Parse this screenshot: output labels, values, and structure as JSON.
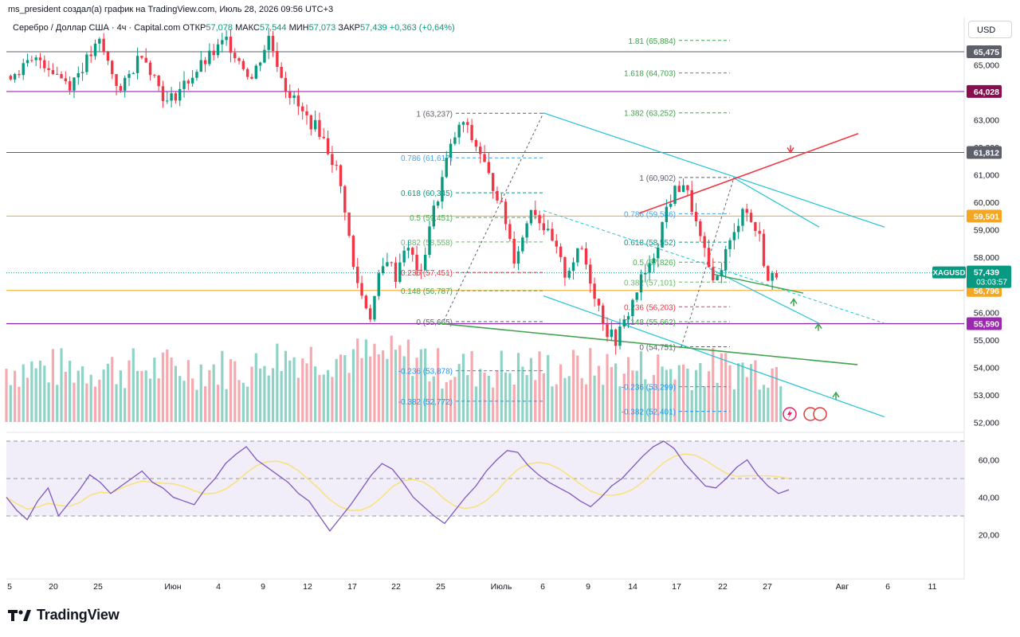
{
  "header": {
    "caption": "ms_president создал(а) график на TradingView.com, Июль 28, 2026 09:56 UTC+3"
  },
  "symbol": {
    "name": "Серебро / Доллар США · 4ч · Capital.com",
    "open_label": "ОТКР",
    "open": "57,078",
    "high_label": "МАКС",
    "high": "57,544",
    "low_label": "МИН",
    "low": "57,073",
    "close_label": "ЗАКР",
    "close": "57,439",
    "change": "+0,363 (+0,64%)"
  },
  "currency": "USD",
  "brand": {
    "name": "TradingView"
  },
  "colors": {
    "up": "#089981",
    "down": "#f23645",
    "rsi": "#7e57c2",
    "rsi_ma": "#f7e27a",
    "trend_cyan": "#22c3d6",
    "trend_red": "#f23645",
    "trend_green": "#3fa34d",
    "orange": "#f5a623",
    "purple": "#8e24aa"
  },
  "chart_data": [
    {
      "type": "candlestick",
      "title": "Серебро / Доллар США · 4ч · Capital.com",
      "ylim": [
        51500,
        66200
      ],
      "y_ticks": [
        "65,000",
        "63,000",
        "62,000",
        "61,000",
        "60,000",
        "59,000",
        "58,000",
        "56,000",
        "55,000",
        "54,000",
        "53,000",
        "52,000"
      ],
      "x_ticks": [
        "5",
        "20",
        "25",
        "Июн",
        "4",
        "9",
        "12",
        "17",
        "22",
        "25",
        "Июль",
        "6",
        "9",
        "14",
        "17",
        "22",
        "27",
        "Авг",
        "6",
        "11"
      ],
      "price_labels": [
        {
          "value": "65,475",
          "color": "#5d606b"
        },
        {
          "value": "64,028",
          "color": "#880e4f"
        },
        {
          "value": "61,812",
          "color": "#5d606b"
        },
        {
          "value": "59,501",
          "color": "#f5a623"
        },
        {
          "value": "56,796",
          "color": "#f5a623"
        },
        {
          "value": "55,590",
          "color": "#9c27b0"
        }
      ],
      "last_price": {
        "symbol": "XAGUSD",
        "price": "57,439",
        "countdown": "03:03:57"
      },
      "horizontal_levels": [
        65475,
        64028,
        61812,
        59501,
        56796,
        55590
      ],
      "fib_1": [
        {
          "ratio": "1",
          "value": "63,237"
        },
        {
          "ratio": "0.786",
          "value": "61,617"
        },
        {
          "ratio": "0.618",
          "value": "60,345"
        },
        {
          "ratio": "0.5",
          "value": "59,451"
        },
        {
          "ratio": "0.382",
          "value": "58,558"
        },
        {
          "ratio": "0.236",
          "value": "57,451"
        },
        {
          "ratio": "0.148",
          "value": "56,787"
        },
        {
          "ratio": "0",
          "value": "55,665"
        },
        {
          "ratio": "-0.236",
          "value": "53,878"
        },
        {
          "ratio": "-0.382",
          "value": "52,772"
        }
      ],
      "fib_2": [
        {
          "ratio": "1.81",
          "value": "65,884"
        },
        {
          "ratio": "1.618",
          "value": "64,703"
        },
        {
          "ratio": "1.382",
          "value": "63,252"
        },
        {
          "ratio": "1",
          "value": "60,902"
        },
        {
          "ratio": "0.786",
          "value": "59,586"
        },
        {
          "ratio": "0.618",
          "value": "58,552"
        },
        {
          "ratio": "0.5",
          "value": "57,826"
        },
        {
          "ratio": "0.382",
          "value": "57,101"
        },
        {
          "ratio": "0.236",
          "value": "56,203"
        },
        {
          "ratio": "0.148",
          "value": "55,662"
        },
        {
          "ratio": "0",
          "value": "54,751"
        },
        {
          "ratio": "-0.236",
          "value": "53,299"
        },
        {
          "ratio": "-0.382",
          "value": "52,401"
        }
      ],
      "price_path": [
        [
          0,
          64.6
        ],
        [
          8,
          65.2
        ],
        [
          15,
          64.3
        ],
        [
          22,
          65.8
        ],
        [
          27,
          64.0
        ],
        [
          32,
          65.5
        ],
        [
          38,
          63.6
        ],
        [
          45,
          64.8
        ],
        [
          52,
          65.9
        ],
        [
          58,
          64.5
        ],
        [
          62,
          66.0
        ],
        [
          66,
          64.2
        ],
        [
          70,
          63.2
        ],
        [
          74,
          62.6
        ],
        [
          78,
          61.2
        ],
        [
          80,
          59.8
        ],
        [
          82,
          57.6
        ],
        [
          84,
          56.6
        ],
        [
          86,
          55.9
        ],
        [
          88,
          57.2
        ],
        [
          90,
          58.0
        ],
        [
          92,
          57.3
        ],
        [
          94,
          58.4
        ],
        [
          96,
          58.0
        ],
        [
          98,
          57.3
        ],
        [
          100,
          59.2
        ],
        [
          102,
          60.2
        ],
        [
          104,
          61.5
        ],
        [
          106,
          62.4
        ],
        [
          108,
          62.9
        ],
        [
          110,
          62.3
        ],
        [
          112,
          61.8
        ],
        [
          114,
          60.9
        ],
        [
          116,
          60.3
        ],
        [
          118,
          59.3
        ],
        [
          120,
          58.0
        ],
        [
          122,
          58.7
        ],
        [
          124,
          59.9
        ],
        [
          126,
          59.4
        ],
        [
          128,
          58.8
        ],
        [
          130,
          58.2
        ],
        [
          132,
          57.4
        ],
        [
          134,
          57.9
        ],
        [
          136,
          58.3
        ],
        [
          138,
          57.2
        ],
        [
          140,
          56.2
        ],
        [
          142,
          55.3
        ],
        [
          144,
          55.0
        ],
        [
          146,
          55.6
        ],
        [
          148,
          56.4
        ],
        [
          150,
          57.2
        ],
        [
          152,
          57.6
        ],
        [
          154,
          58.6
        ],
        [
          156,
          59.8
        ],
        [
          158,
          60.4
        ],
        [
          160,
          60.7
        ],
        [
          162,
          59.8
        ],
        [
          164,
          58.6
        ],
        [
          166,
          57.6
        ],
        [
          168,
          57.2
        ],
        [
          170,
          58.2
        ],
        [
          172,
          58.8
        ],
        [
          174,
          59.9
        ],
        [
          176,
          59.3
        ],
        [
          178,
          58.7
        ],
        [
          180,
          57.1
        ],
        [
          182,
          57.44
        ]
      ]
    },
    {
      "type": "line",
      "title": "RSI",
      "ylim": [
        10,
        72
      ],
      "y_ticks": [
        "60,00",
        "40,00",
        "20,00"
      ],
      "bands": [
        70,
        50,
        30
      ],
      "series": [
        {
          "values": [
            40,
            33,
            28,
            38,
            45,
            30,
            37,
            44,
            52,
            48,
            42,
            46,
            50,
            54,
            48,
            45,
            40,
            38,
            36,
            44,
            50,
            58,
            63,
            67,
            60,
            56,
            52,
            48,
            42,
            38,
            30,
            22,
            29,
            36,
            44,
            52,
            58,
            55,
            48,
            40,
            35,
            30,
            26,
            33,
            40,
            46,
            54,
            60,
            65,
            64,
            57,
            52,
            48,
            45,
            42,
            38,
            35,
            40,
            46,
            50,
            56,
            62,
            67,
            70,
            66,
            58,
            52,
            46,
            45,
            50,
            56,
            60,
            52,
            46,
            42,
            44
          ]
        }
      ]
    }
  ]
}
